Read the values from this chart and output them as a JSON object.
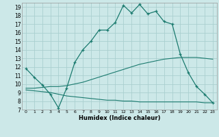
{
  "xlabel": "Humidex (Indice chaleur)",
  "x_ticks": [
    0,
    1,
    2,
    3,
    4,
    5,
    6,
    7,
    8,
    9,
    10,
    11,
    12,
    13,
    14,
    15,
    16,
    17,
    18,
    19,
    20,
    21,
    22,
    23
  ],
  "xlim": [
    -0.5,
    23.5
  ],
  "ylim": [
    7,
    19.5
  ],
  "y_ticks": [
    7,
    8,
    9,
    10,
    11,
    12,
    13,
    14,
    15,
    16,
    17,
    18,
    19
  ],
  "bg_color": "#cce8e8",
  "grid_color": "#aacfcf",
  "line_color": "#1a7a6e",
  "line_main_x": [
    0,
    1,
    2,
    3,
    4,
    5,
    6,
    7,
    8,
    9,
    10,
    11,
    12,
    13,
    14,
    15,
    16,
    17,
    18,
    19,
    20,
    21,
    22,
    23
  ],
  "line_main_y": [
    11.8,
    10.8,
    9.9,
    8.8,
    7.2,
    9.5,
    12.5,
    14.0,
    15.0,
    16.3,
    16.3,
    17.2,
    19.2,
    18.3,
    19.3,
    18.2,
    18.5,
    17.3,
    17.0,
    13.5,
    11.3,
    9.7,
    8.8,
    7.8
  ],
  "line_upper_x": [
    0,
    1,
    2,
    3,
    4,
    5,
    6,
    7,
    8,
    9,
    10,
    11,
    12,
    13,
    14,
    15,
    16,
    17,
    18,
    19,
    20,
    21,
    22,
    23
  ],
  "line_upper_y": [
    9.5,
    9.5,
    9.6,
    9.7,
    9.7,
    9.8,
    10.0,
    10.2,
    10.5,
    10.8,
    11.1,
    11.4,
    11.7,
    12.0,
    12.3,
    12.5,
    12.7,
    12.9,
    13.0,
    13.1,
    13.1,
    13.1,
    13.0,
    12.9
  ],
  "line_lower_x": [
    0,
    1,
    2,
    3,
    4,
    5,
    6,
    7,
    8,
    9,
    10,
    11,
    12,
    13,
    14,
    15,
    16,
    17,
    18,
    19,
    20,
    21,
    22,
    23
  ],
  "line_lower_y": [
    9.3,
    9.2,
    9.1,
    9.0,
    8.8,
    8.6,
    8.5,
    8.4,
    8.3,
    8.2,
    8.1,
    8.1,
    8.0,
    8.0,
    7.9,
    7.9,
    7.9,
    7.9,
    7.9,
    7.9,
    7.9,
    7.9,
    7.8,
    7.8
  ]
}
